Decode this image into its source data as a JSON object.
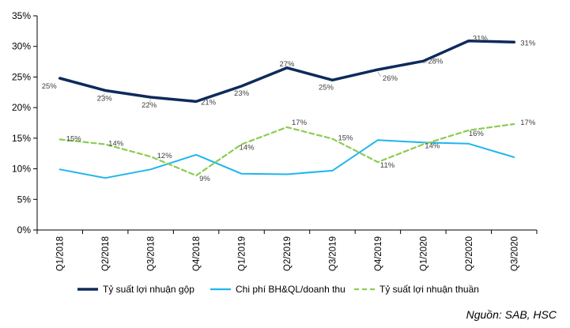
{
  "chart_data": {
    "type": "line",
    "categories": [
      "Q1/2018",
      "Q2/2018",
      "Q3/2018",
      "Q4/2018",
      "Q1/2019",
      "Q2/2019",
      "Q3/2019",
      "Q4/2019",
      "Q1/2020",
      "Q2/2020",
      "Q3/2020"
    ],
    "ylim": [
      0,
      35
    ],
    "yticks": [
      "0%",
      "5%",
      "10%",
      "15%",
      "20%",
      "25%",
      "30%",
      "35%"
    ],
    "ytick_values": [
      0,
      5,
      10,
      15,
      20,
      25,
      30,
      35
    ],
    "grid": false,
    "legend_position": "bottom",
    "series": [
      {
        "name": "Tỷ suất lợi nhuận gộp",
        "color": "#0e2a5c",
        "style": "solid",
        "values": [
          24.8,
          22.8,
          21.7,
          21.0,
          23.5,
          26.5,
          24.5,
          26.2,
          27.6,
          30.9,
          30.7
        ],
        "labels": [
          "25%",
          "23%",
          "22%",
          "21%",
          "23%",
          "27%",
          "25%",
          "26%",
          "28%",
          "31%",
          "31%"
        ]
      },
      {
        "name": "Chi phí BH&QL/doanh thu",
        "color": "#1fb5ee",
        "style": "solid",
        "values": [
          9.9,
          8.5,
          9.9,
          12.3,
          9.2,
          9.1,
          9.7,
          14.7,
          14.3,
          14.1,
          11.9
        ],
        "labels": []
      },
      {
        "name": "Tỷ suất lợi nhuận thuần",
        "color": "#8ccc52",
        "style": "dashed",
        "values": [
          14.8,
          14.0,
          12.0,
          8.9,
          14.0,
          16.8,
          14.9,
          11.1,
          14.0,
          16.3,
          17.3
        ],
        "labels": [
          "15%",
          "14%",
          "12%",
          "9%",
          "14%",
          "17%",
          "15%",
          "11%",
          "14%",
          "16%",
          "17%"
        ]
      }
    ]
  },
  "source_note": "Nguồn: SAB, HSC"
}
